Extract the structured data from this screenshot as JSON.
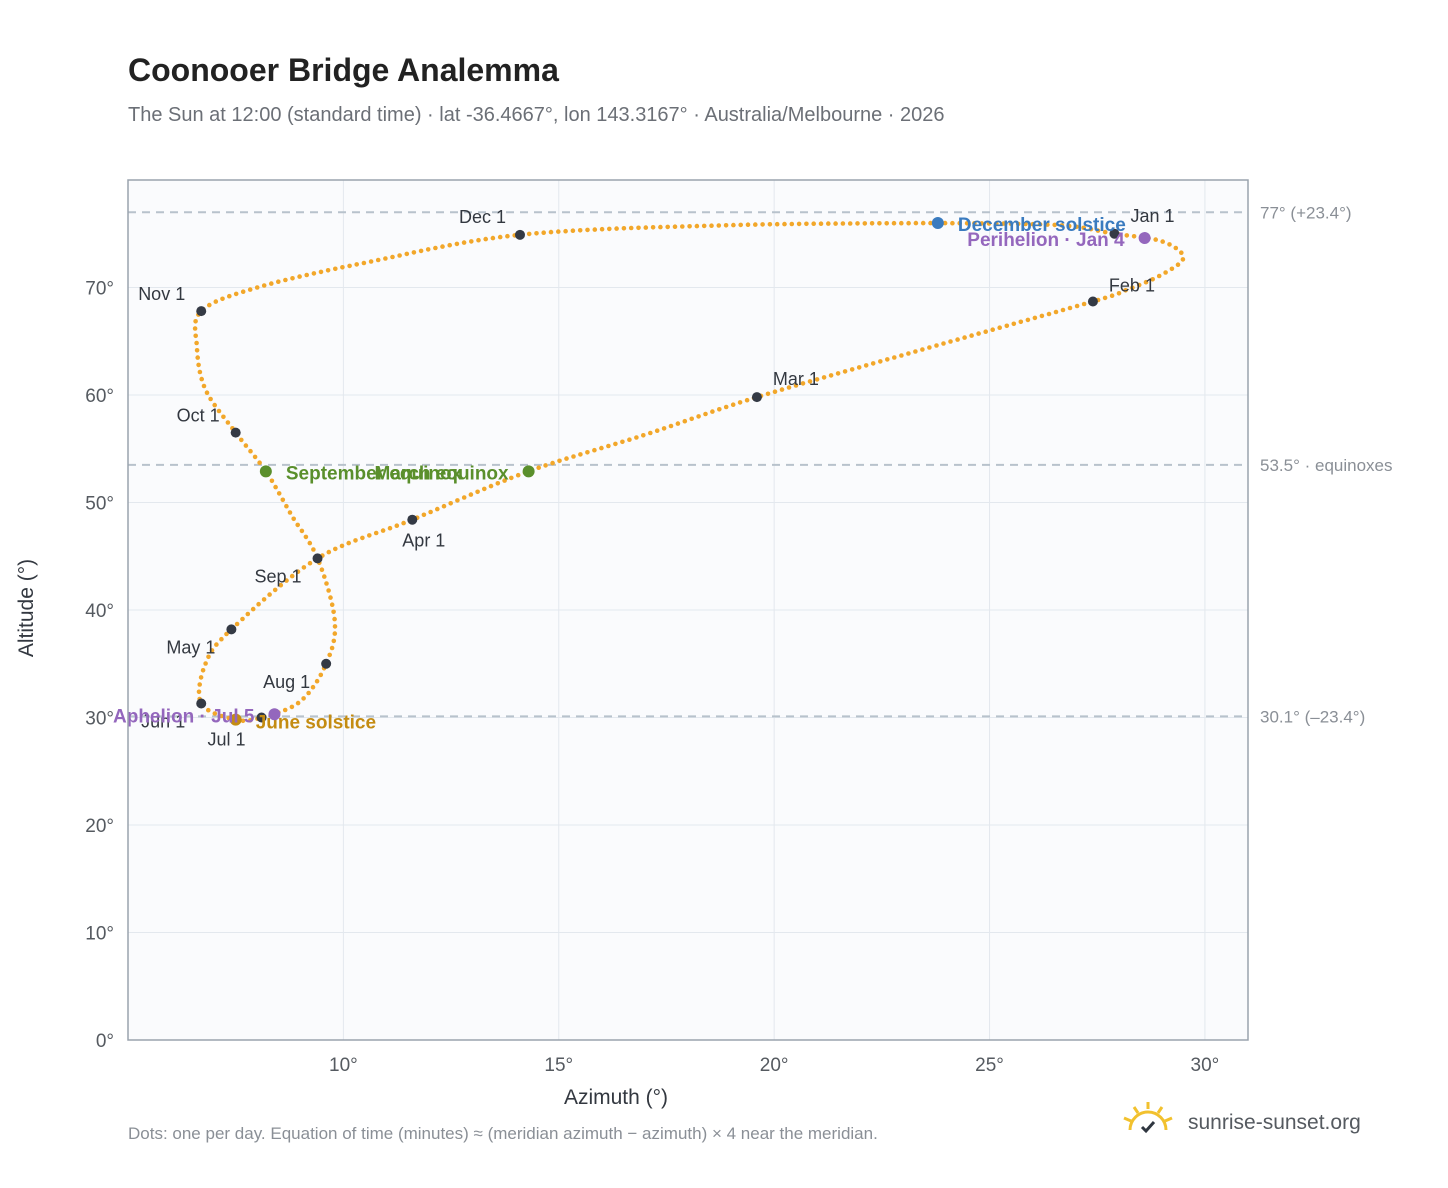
{
  "title": "Coonooer Bridge Analemma",
  "subtitle": "The Sun at 12:00 (standard time) · lat -36.4667°, lon 143.3167° · Australia/Melbourne · 2026",
  "footnote": "Dots: one per day. Equation of time (minutes) ≈ (meridian azimuth − azimuth) × 4 near the meridian.",
  "brand": {
    "name": "sunrise-sunset.org",
    "icon": "sun-logo-icon"
  },
  "colors": {
    "curve": "#f2a72a",
    "month_marker": "#343a45",
    "equinox": "#5a8f2c",
    "december_solstice": "#3a7bbf",
    "june_solstice": "#c48c12",
    "apsis": "#9467bd",
    "reference_line": "#b8c2cc",
    "plot_bg": "#fafbfd",
    "grid": "#e3e8ee",
    "frame": "#9aa3ad"
  },
  "chart_data": {
    "type": "scatter",
    "xlabel": "Azimuth (°)",
    "ylabel": "Altitude (°)",
    "xlim": [
      5,
      31
    ],
    "ylim": [
      0,
      80
    ],
    "x_ticks": [
      10,
      15,
      20,
      25,
      30
    ],
    "x_tick_labels": [
      "10°",
      "15°",
      "20°",
      "25°",
      "30°"
    ],
    "y_ticks": [
      0,
      10,
      20,
      30,
      40,
      50,
      60,
      70
    ],
    "y_tick_labels": [
      "0°",
      "10°",
      "20°",
      "30°",
      "40°",
      "50°",
      "60°",
      "70°"
    ],
    "grid": true,
    "reference_lines": [
      {
        "y": 77.0,
        "label": "77° (+23.4°)"
      },
      {
        "y": 53.5,
        "label": "53.5° · equinoxes"
      },
      {
        "y": 30.1,
        "label": "30.1° (–23.4°)"
      }
    ],
    "month_markers": [
      {
        "label": "Jan 1",
        "x": 27.9,
        "y": 75.0
      },
      {
        "label": "Feb 1",
        "x": 27.4,
        "y": 68.7
      },
      {
        "label": "Mar 1",
        "x": 19.6,
        "y": 59.8
      },
      {
        "label": "Apr 1",
        "x": 11.6,
        "y": 48.4
      },
      {
        "label": "May 1",
        "x": 7.4,
        "y": 38.2
      },
      {
        "label": "Jun 1",
        "x": 6.7,
        "y": 31.3
      },
      {
        "label": "Jul 1",
        "x": 8.1,
        "y": 30.0
      },
      {
        "label": "Aug 1",
        "x": 9.6,
        "y": 35.0
      },
      {
        "label": "Sep 1",
        "x": 9.4,
        "y": 44.8
      },
      {
        "label": "Oct 1",
        "x": 7.5,
        "y": 56.5
      },
      {
        "label": "Nov 1",
        "x": 6.7,
        "y": 67.8
      },
      {
        "label": "Dec 1",
        "x": 14.1,
        "y": 74.9
      }
    ],
    "events": [
      {
        "label": "December solstice",
        "x": 23.8,
        "y": 76.0,
        "kind": "december_solstice"
      },
      {
        "label": "Perihelion · Jan 4",
        "x": 28.6,
        "y": 74.6,
        "kind": "apsis"
      },
      {
        "label": "March equinox",
        "x": 14.3,
        "y": 52.9,
        "kind": "equinox"
      },
      {
        "label": "September equinox",
        "x": 8.2,
        "y": 52.9,
        "kind": "equinox"
      },
      {
        "label": "June solstice",
        "x": 7.5,
        "y": 29.8,
        "kind": "june_solstice"
      },
      {
        "label": "Aphelion · Jul 5",
        "x": 8.4,
        "y": 30.3,
        "kind": "apsis"
      }
    ],
    "path_knots": [
      {
        "x": 23.8,
        "y": 76.0
      },
      {
        "x": 26.6,
        "y": 75.8
      },
      {
        "x": 27.9,
        "y": 75.0
      },
      {
        "x": 29.0,
        "y": 74.3
      },
      {
        "x": 29.5,
        "y": 72.8
      },
      {
        "x": 29.0,
        "y": 71.2
      },
      {
        "x": 28.2,
        "y": 69.8
      },
      {
        "x": 27.4,
        "y": 68.7
      },
      {
        "x": 23.5,
        "y": 64.3
      },
      {
        "x": 19.6,
        "y": 59.8
      },
      {
        "x": 17.0,
        "y": 56.3
      },
      {
        "x": 14.3,
        "y": 52.9
      },
      {
        "x": 11.6,
        "y": 48.4
      },
      {
        "x": 9.4,
        "y": 44.8
      },
      {
        "x": 7.4,
        "y": 38.2
      },
      {
        "x": 6.8,
        "y": 35.0
      },
      {
        "x": 6.7,
        "y": 31.3
      },
      {
        "x": 7.5,
        "y": 29.8
      },
      {
        "x": 8.1,
        "y": 30.0
      },
      {
        "x": 9.0,
        "y": 31.5
      },
      {
        "x": 9.6,
        "y": 35.0
      },
      {
        "x": 9.8,
        "y": 39.0
      },
      {
        "x": 9.4,
        "y": 44.8
      },
      {
        "x": 8.8,
        "y": 48.8
      },
      {
        "x": 8.2,
        "y": 52.9
      },
      {
        "x": 7.5,
        "y": 56.5
      },
      {
        "x": 6.8,
        "y": 60.5
      },
      {
        "x": 6.6,
        "y": 64.5
      },
      {
        "x": 6.7,
        "y": 67.8
      },
      {
        "x": 8.0,
        "y": 70.0
      },
      {
        "x": 10.5,
        "y": 72.3
      },
      {
        "x": 14.1,
        "y": 74.9
      },
      {
        "x": 19.0,
        "y": 75.8
      },
      {
        "x": 23.8,
        "y": 76.0
      }
    ]
  }
}
